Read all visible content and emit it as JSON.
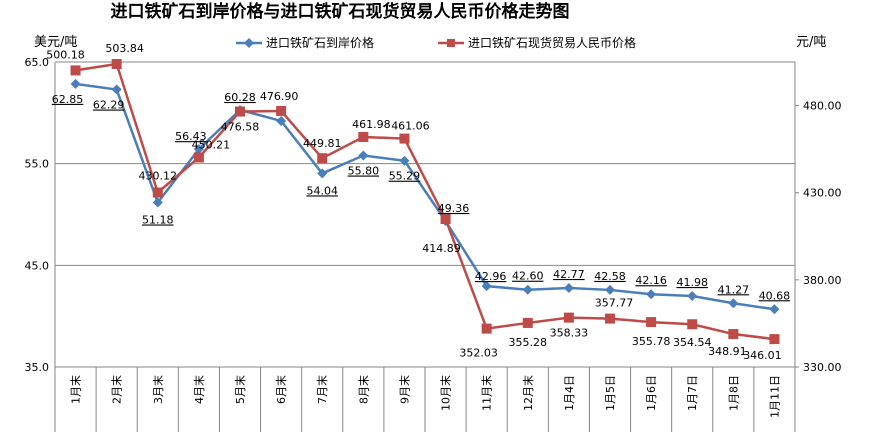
{
  "chart_data": {
    "type": "line",
    "title": "进口铁矿石到岸价格与进口铁矿石现货贸易人民币价格走势图",
    "ylabel_left": "美元/吨",
    "ylabel_right": "元/吨",
    "categories": [
      "1月末",
      "2月末",
      "3月末",
      "4月末",
      "5月末",
      "6月末",
      "7月末",
      "8月末",
      "9月末",
      "10月末",
      "11月末",
      "12月末",
      "1月4日",
      "1月5日",
      "1月6日",
      "1月7日",
      "1月8日",
      "1月11日"
    ],
    "y_left": {
      "lim": [
        35.0,
        65.0
      ],
      "ticks": [
        "35.0",
        "45.0",
        "55.0",
        "65.0"
      ]
    },
    "y_right": {
      "lim": [
        330.0,
        505.0
      ],
      "ticks": [
        "330.00",
        "380.00",
        "430.00",
        "480.00"
      ]
    },
    "grid": true,
    "legend_position": "top",
    "series": [
      {
        "name": "进口铁矿石到岸价格",
        "axis": "left",
        "color": "#4a7ebb",
        "marker": "diamond",
        "values": [
          62.85,
          62.29,
          51.18,
          56.43,
          60.28,
          59.2,
          54.04,
          55.8,
          55.29,
          49.36,
          42.96,
          42.6,
          42.77,
          42.58,
          42.16,
          41.98,
          41.27,
          40.68
        ],
        "labels": [
          "62.85",
          "62.29",
          "51.18",
          "56.43",
          "60.28",
          "",
          "54.04",
          "55.80",
          "55.29",
          "49.36",
          "42.96",
          "42.60",
          "42.77",
          "42.58",
          "42.16",
          "41.98",
          "41.27",
          "40.68"
        ]
      },
      {
        "name": "进口铁矿石现货贸易人民币价格",
        "axis": "right",
        "color": "#be4b48",
        "marker": "square",
        "values": [
          500.18,
          503.84,
          430.12,
          450.21,
          476.58,
          476.9,
          449.81,
          461.98,
          461.06,
          414.89,
          352.03,
          355.28,
          358.33,
          357.77,
          355.78,
          354.54,
          348.91,
          346.01
        ],
        "labels": [
          "500.18",
          "503.84",
          "430.12",
          "450.21",
          "476.58",
          "476.90",
          "449.81",
          "461.98",
          "461.06",
          "414.89",
          "352.03",
          "355.28",
          "358.33",
          "357.77",
          "355.78",
          "354.54",
          "348.91",
          "346.01"
        ]
      }
    ]
  }
}
